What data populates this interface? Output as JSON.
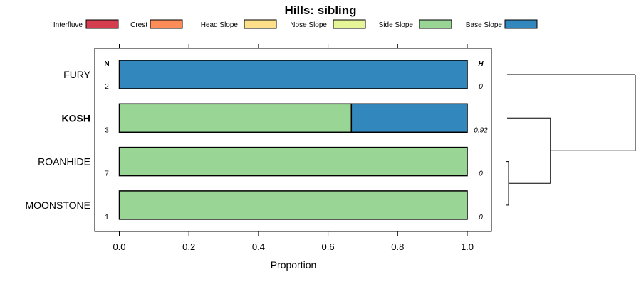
{
  "chart_data": {
    "type": "bar",
    "orientation": "horizontal",
    "stacked": true,
    "title": "Hills: sibling",
    "xlabel": "Proportion",
    "ylabel": "",
    "xlim": [
      0,
      1
    ],
    "x_ticks": [
      0.0,
      0.2,
      0.4,
      0.6,
      0.8,
      1.0
    ],
    "x_tick_labels": [
      "0.0",
      "0.2",
      "0.4",
      "0.6",
      "0.8",
      "1.0"
    ],
    "legend": [
      {
        "name": "Interfluve",
        "color": "#D53E4F"
      },
      {
        "name": "Crest",
        "color": "#FC8D59"
      },
      {
        "name": "Head Slope",
        "color": "#FEE08B"
      },
      {
        "name": "Nose Slope",
        "color": "#E6F598"
      },
      {
        "name": "Side Slope",
        "color": "#99D594"
      },
      {
        "name": "Base Slope",
        "color": "#3288BD"
      }
    ],
    "legend_position": "top",
    "n_header": "N",
    "h_header": "H",
    "highlighted": "KOSH",
    "rows": [
      {
        "name": "FURY",
        "n": "2",
        "h": "0",
        "values": [
          0,
          0,
          0,
          0,
          0,
          1
        ]
      },
      {
        "name": "KOSH",
        "n": "3",
        "h": "0.92",
        "values": [
          0,
          0,
          0,
          0,
          0.667,
          0.333
        ]
      },
      {
        "name": "ROANHIDE",
        "n": "7",
        "h": "0",
        "values": [
          0,
          0,
          0,
          0,
          1,
          0
        ]
      },
      {
        "name": "MOONSTONE",
        "n": "1",
        "h": "0",
        "values": [
          0,
          0,
          0,
          0,
          1,
          0
        ]
      }
    ],
    "dendrogram": {
      "merges": [
        {
          "left": "ROANHIDE",
          "right": "MOONSTONE",
          "height": 0.0
        },
        {
          "left": "KOSH",
          "right": "ROANHIDE+MOONSTONE",
          "height": 0.33
        },
        {
          "left": "FURY",
          "right": "KOSH+ROANHIDE+MOONSTONE",
          "height": 1.0
        }
      ]
    }
  }
}
